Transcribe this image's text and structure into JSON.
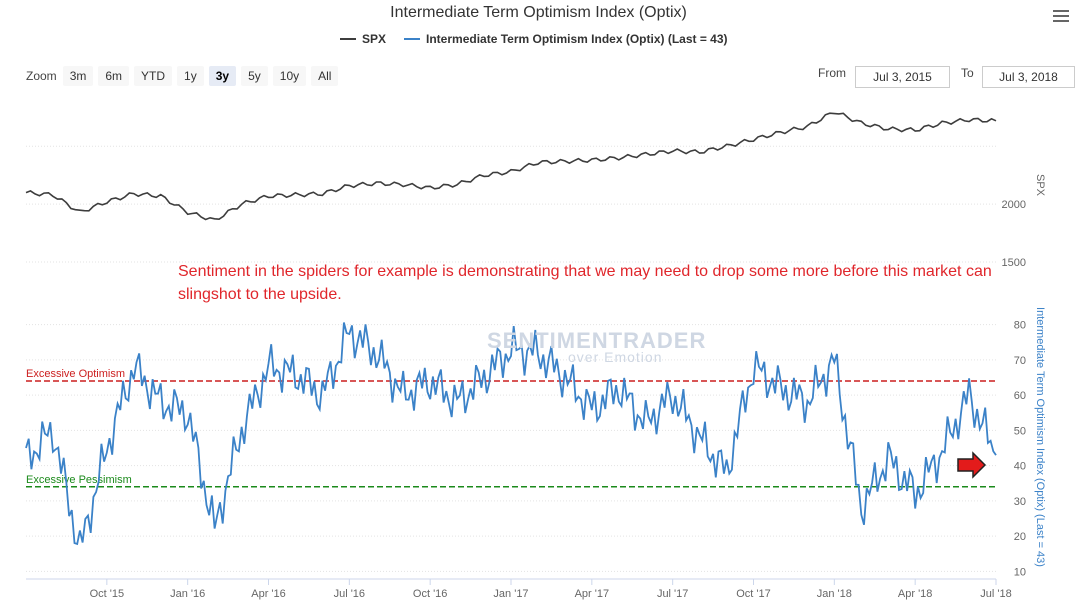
{
  "header": {
    "title": "Intermediate Term Optimism Index (Optix)"
  },
  "legend": {
    "spx_label": "SPX",
    "optix_label": "Intermediate Term Optimism Index (Optix) (Last = 43)"
  },
  "range_selector": {
    "zoom_label": "Zoom",
    "buttons": [
      "3m",
      "6m",
      "YTD",
      "1y",
      "3y",
      "5y",
      "10y",
      "All"
    ],
    "active": "3y",
    "from_label": "From",
    "from_value": "Jul 3, 2015",
    "to_label": "To",
    "to_value": "Jul 3, 2018"
  },
  "annotation": {
    "text": "Sentiment in the spiders for example is demonstrating that we may need to drop some more before this market can slingshot to the upside."
  },
  "watermark": {
    "main": "SENTIMENTRADER",
    "sub": "over Emotion"
  },
  "colors": {
    "spx_line": "#3d3d3d",
    "optix_line": "#3b82c8",
    "excessive_optimism": "#cc1f1f",
    "excessive_pessimism": "#1b8a1b",
    "arrow": "#e31b1b",
    "grid": "#e3e3e3"
  },
  "chart_data": [
    {
      "type": "line",
      "series": [
        {
          "name": "SPX",
          "x": [
            "2015-07",
            "2015-08",
            "2015-09",
            "2015-10",
            "2015-11",
            "2015-12",
            "2016-01",
            "2016-02",
            "2016-03",
            "2016-04",
            "2016-05",
            "2016-06",
            "2016-07",
            "2016-08",
            "2016-09",
            "2016-10",
            "2016-11",
            "2016-12",
            "2017-01",
            "2017-02",
            "2017-03",
            "2017-04",
            "2017-05",
            "2017-06",
            "2017-07",
            "2017-08",
            "2017-09",
            "2017-10",
            "2017-11",
            "2017-12",
            "2018-01",
            "2018-02",
            "2018-03",
            "2018-04",
            "2018-05",
            "2018-06",
            "2018-07"
          ],
          "values": [
            2100,
            2080,
            1930,
            2020,
            2090,
            2070,
            1930,
            1860,
            2000,
            2070,
            2080,
            2090,
            2160,
            2180,
            2170,
            2140,
            2170,
            2250,
            2280,
            2360,
            2370,
            2380,
            2400,
            2430,
            2460,
            2450,
            2500,
            2560,
            2620,
            2670,
            2800,
            2700,
            2650,
            2640,
            2700,
            2730,
            2720
          ]
        }
      ],
      "axis_labels": [
        "2000",
        "1500"
      ],
      "axis_title": "SPX"
    },
    {
      "type": "line",
      "series": [
        {
          "name": "Intermediate Term Optimism Index (Optix) (Last = 43)",
          "x": [
            "2015-07",
            "2015-08",
            "2015-09",
            "2015-10",
            "2015-11",
            "2015-12",
            "2016-01",
            "2016-02",
            "2016-03",
            "2016-04",
            "2016-05",
            "2016-06",
            "2016-07",
            "2016-08",
            "2016-09",
            "2016-10",
            "2016-11",
            "2016-12",
            "2017-01",
            "2017-02",
            "2017-03",
            "2017-04",
            "2017-05",
            "2017-06",
            "2017-07",
            "2017-08",
            "2017-09",
            "2017-10",
            "2017-11",
            "2017-12",
            "2018-01",
            "2018-02",
            "2018-03",
            "2018-04",
            "2018-05",
            "2018-06",
            "2018-07"
          ],
          "values": [
            42,
            50,
            16,
            45,
            68,
            58,
            55,
            22,
            50,
            68,
            66,
            60,
            78,
            72,
            60,
            64,
            58,
            65,
            73,
            72,
            65,
            56,
            62,
            52,
            60,
            48,
            38,
            68,
            62,
            58,
            70,
            28,
            42,
            32,
            44,
            60,
            43
          ]
        }
      ],
      "ylim": [
        5,
        85
      ],
      "yticks": [
        10,
        20,
        30,
        40,
        50,
        60,
        70,
        80
      ],
      "axis_title": "Intermediate Term Optimism Index (Optix) (Last = 43)",
      "reference_lines": [
        {
          "label": "Excessive Optimism",
          "value": 64
        },
        {
          "label": "Excessive Pessimism",
          "value": 34
        }
      ]
    }
  ],
  "x_axis": {
    "tick_labels": [
      "Oct '15",
      "Jan '16",
      "Apr '16",
      "Jul '16",
      "Oct '16",
      "Jan '17",
      "Apr '17",
      "Jul '17",
      "Oct '17",
      "Jan '18",
      "Apr '18",
      "Jul '18"
    ]
  }
}
